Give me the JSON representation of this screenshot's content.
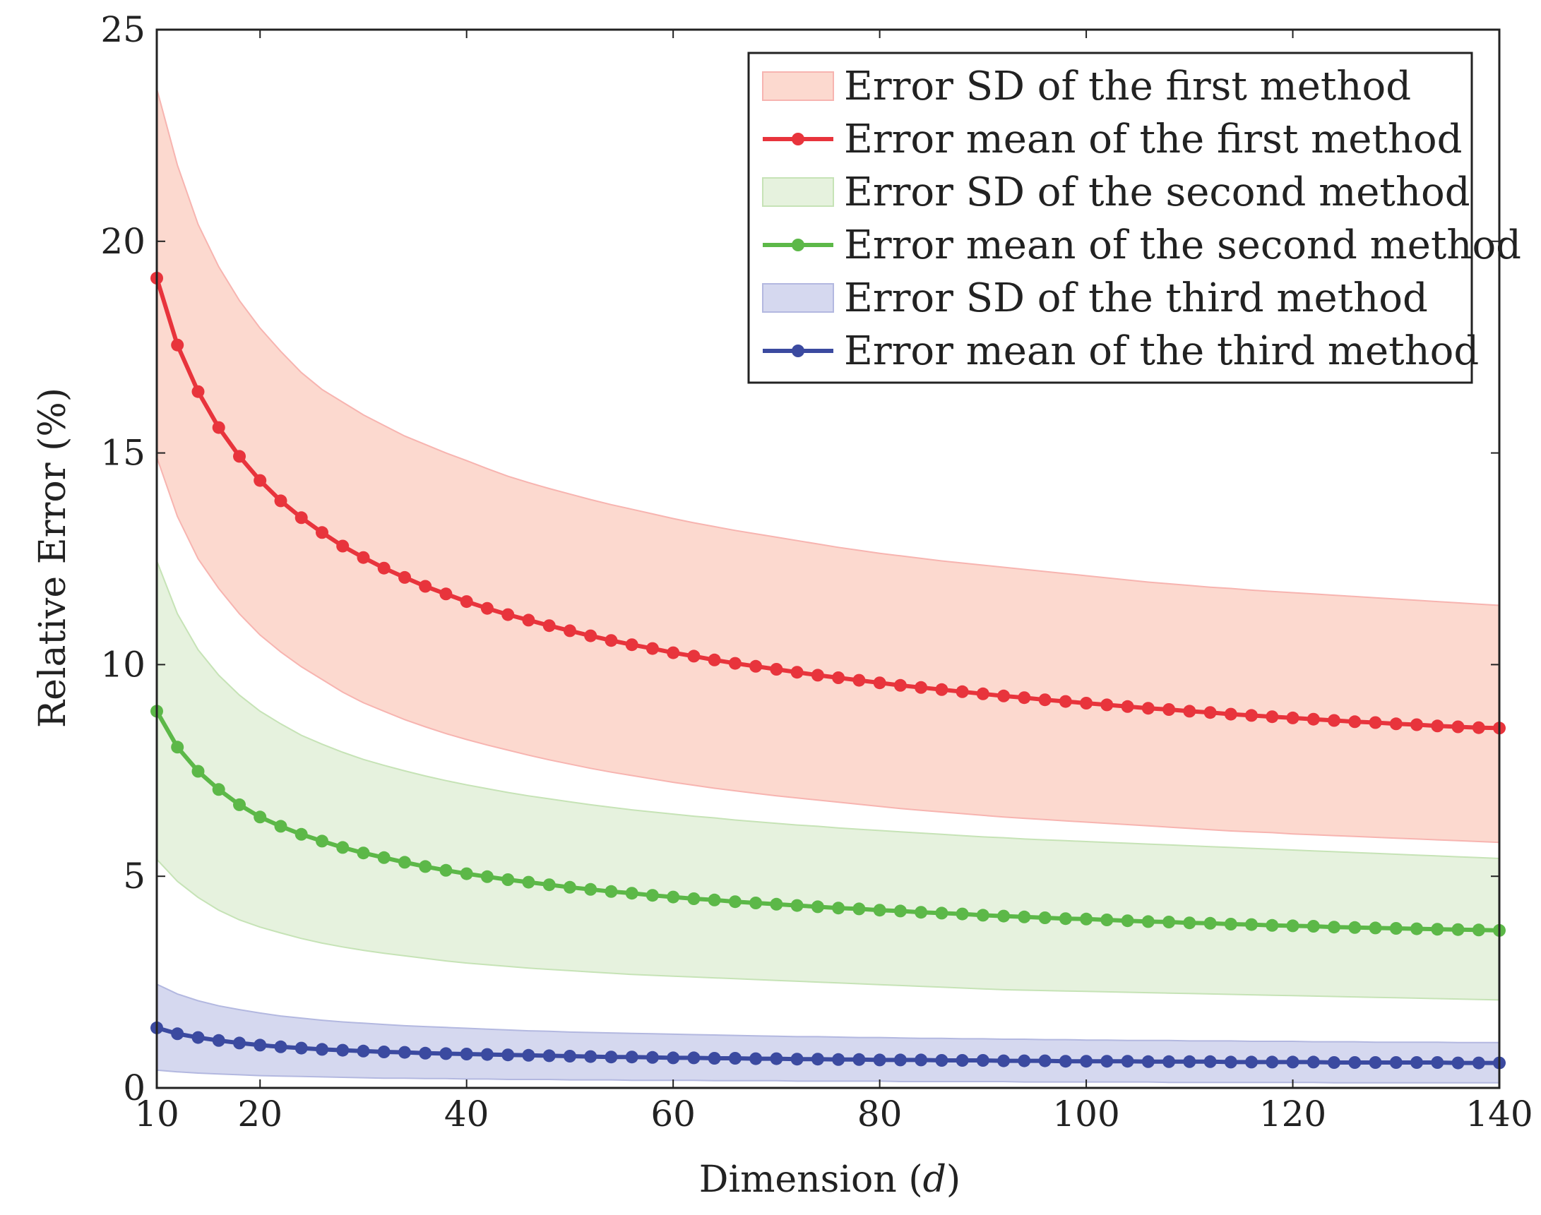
{
  "chart_data": {
    "type": "line",
    "title": "",
    "xlabel_text": "Dimension (",
    "xlabel_var": "d",
    "xlabel_close": ")",
    "ylabel": "Relative Error (%)",
    "xlim": [
      10,
      140
    ],
    "ylim": [
      0,
      25
    ],
    "xticks": [
      10,
      20,
      40,
      60,
      80,
      100,
      120,
      140
    ],
    "yticks": [
      0,
      5,
      10,
      15,
      20,
      25
    ],
    "xtick_labels": [
      "10",
      "20",
      "40",
      "60",
      "80",
      "100",
      "120",
      "140"
    ],
    "ytick_labels": [
      "0",
      "5",
      "10",
      "15",
      "20",
      "25"
    ],
    "legend_position": "top-right",
    "legend": [
      {
        "label": "Error SD of the first method",
        "kind": "band",
        "series": 0
      },
      {
        "label": "Error mean of the first method",
        "kind": "line",
        "series": 0
      },
      {
        "label": "Error SD of the second method",
        "kind": "band",
        "series": 1
      },
      {
        "label": "Error mean of the second method",
        "kind": "line",
        "series": 1
      },
      {
        "label": "Error SD of the third method",
        "kind": "band",
        "series": 2
      },
      {
        "label": "Error mean of the third method",
        "kind": "line",
        "series": 2
      }
    ],
    "x": [
      10,
      12,
      14,
      16,
      18,
      20,
      22,
      24,
      26,
      28,
      30,
      32,
      34,
      36,
      38,
      40,
      42,
      44,
      46,
      48,
      50,
      52,
      54,
      56,
      58,
      60,
      62,
      64,
      66,
      68,
      70,
      72,
      74,
      76,
      78,
      80,
      82,
      84,
      86,
      88,
      90,
      92,
      94,
      96,
      98,
      100,
      102,
      104,
      106,
      108,
      110,
      112,
      114,
      116,
      118,
      120,
      122,
      124,
      126,
      128,
      130,
      132,
      134,
      136,
      138,
      140
    ],
    "series": [
      {
        "name": "first method",
        "line_color": "#e8343c",
        "band_fill": "#fcd9cf",
        "band_stroke": "#f7b4b0",
        "mean": [
          19.13,
          17.55,
          16.45,
          15.6,
          14.92,
          14.35,
          13.87,
          13.47,
          13.12,
          12.8,
          12.53,
          12.28,
          12.06,
          11.85,
          11.67,
          11.49,
          11.33,
          11.18,
          11.05,
          10.92,
          10.8,
          10.68,
          10.57,
          10.47,
          10.38,
          10.28,
          10.2,
          10.11,
          10.03,
          9.96,
          9.89,
          9.82,
          9.75,
          9.69,
          9.63,
          9.57,
          9.51,
          9.46,
          9.41,
          9.36,
          9.31,
          9.26,
          9.22,
          9.17,
          9.13,
          9.09,
          9.05,
          9.01,
          8.97,
          8.94,
          8.9,
          8.87,
          8.83,
          8.8,
          8.77,
          8.74,
          8.71,
          8.68,
          8.65,
          8.63,
          8.6,
          8.58,
          8.55,
          8.53,
          8.51,
          8.5
        ],
        "upper": [
          23.6,
          21.8,
          20.4,
          19.4,
          18.6,
          17.95,
          17.4,
          16.9,
          16.5,
          16.2,
          15.9,
          15.65,
          15.4,
          15.2,
          15.0,
          14.82,
          14.63,
          14.45,
          14.3,
          14.16,
          14.03,
          13.9,
          13.78,
          13.67,
          13.56,
          13.45,
          13.35,
          13.26,
          13.17,
          13.09,
          13.01,
          12.93,
          12.85,
          12.77,
          12.7,
          12.63,
          12.57,
          12.51,
          12.45,
          12.4,
          12.35,
          12.3,
          12.25,
          12.2,
          12.15,
          12.1,
          12.05,
          12.0,
          11.95,
          11.91,
          11.87,
          11.83,
          11.8,
          11.76,
          11.73,
          11.7,
          11.67,
          11.64,
          11.61,
          11.58,
          11.55,
          11.52,
          11.49,
          11.46,
          11.43,
          11.4
        ],
        "lower": [
          14.9,
          13.5,
          12.5,
          11.8,
          11.2,
          10.7,
          10.3,
          9.95,
          9.65,
          9.35,
          9.1,
          8.9,
          8.7,
          8.53,
          8.37,
          8.23,
          8.1,
          7.98,
          7.86,
          7.75,
          7.65,
          7.55,
          7.46,
          7.38,
          7.3,
          7.22,
          7.15,
          7.08,
          7.02,
          6.96,
          6.9,
          6.85,
          6.8,
          6.75,
          6.7,
          6.65,
          6.6,
          6.56,
          6.52,
          6.48,
          6.44,
          6.4,
          6.37,
          6.34,
          6.31,
          6.28,
          6.25,
          6.22,
          6.19,
          6.16,
          6.13,
          6.1,
          6.07,
          6.05,
          6.03,
          6.0,
          5.98,
          5.96,
          5.94,
          5.92,
          5.9,
          5.88,
          5.86,
          5.84,
          5.82,
          5.8
        ]
      },
      {
        "name": "second method",
        "line_color": "#5cb848",
        "band_fill": "#e6f2de",
        "band_stroke": "#c6e3b6",
        "mean": [
          8.9,
          8.05,
          7.48,
          7.05,
          6.69,
          6.4,
          6.18,
          5.99,
          5.83,
          5.68,
          5.55,
          5.44,
          5.33,
          5.23,
          5.14,
          5.06,
          4.99,
          4.92,
          4.86,
          4.8,
          4.74,
          4.69,
          4.64,
          4.6,
          4.55,
          4.51,
          4.47,
          4.44,
          4.4,
          4.37,
          4.34,
          4.31,
          4.28,
          4.25,
          4.23,
          4.2,
          4.18,
          4.15,
          4.13,
          4.11,
          4.08,
          4.06,
          4.04,
          4.02,
          4.0,
          3.99,
          3.97,
          3.95,
          3.93,
          3.92,
          3.9,
          3.89,
          3.87,
          3.86,
          3.84,
          3.83,
          3.82,
          3.8,
          3.79,
          3.78,
          3.77,
          3.76,
          3.75,
          3.74,
          3.73,
          3.72
        ],
        "upper": [
          12.45,
          11.2,
          10.35,
          9.75,
          9.28,
          8.9,
          8.6,
          8.33,
          8.12,
          7.93,
          7.76,
          7.62,
          7.49,
          7.37,
          7.26,
          7.16,
          7.07,
          6.98,
          6.9,
          6.83,
          6.76,
          6.69,
          6.63,
          6.57,
          6.52,
          6.47,
          6.42,
          6.38,
          6.33,
          6.29,
          6.25,
          6.21,
          6.18,
          6.14,
          6.11,
          6.08,
          6.05,
          6.02,
          5.99,
          5.96,
          5.93,
          5.91,
          5.88,
          5.86,
          5.84,
          5.82,
          5.8,
          5.78,
          5.76,
          5.74,
          5.72,
          5.7,
          5.68,
          5.66,
          5.64,
          5.62,
          5.6,
          5.58,
          5.56,
          5.54,
          5.52,
          5.5,
          5.48,
          5.46,
          5.44,
          5.42
        ],
        "lower": [
          5.4,
          4.88,
          4.5,
          4.2,
          3.97,
          3.8,
          3.66,
          3.53,
          3.42,
          3.33,
          3.25,
          3.18,
          3.12,
          3.06,
          3.0,
          2.95,
          2.91,
          2.87,
          2.83,
          2.8,
          2.77,
          2.74,
          2.71,
          2.68,
          2.66,
          2.64,
          2.62,
          2.6,
          2.58,
          2.56,
          2.54,
          2.52,
          2.5,
          2.48,
          2.46,
          2.44,
          2.42,
          2.4,
          2.38,
          2.36,
          2.34,
          2.32,
          2.31,
          2.3,
          2.29,
          2.28,
          2.27,
          2.26,
          2.25,
          2.24,
          2.23,
          2.22,
          2.21,
          2.2,
          2.19,
          2.18,
          2.17,
          2.16,
          2.15,
          2.14,
          2.13,
          2.12,
          2.11,
          2.1,
          2.09,
          2.08
        ]
      },
      {
        "name": "third method",
        "line_color": "#3b4aa0",
        "band_fill": "#d5d8ef",
        "band_stroke": "#b3b8e0",
        "mean": [
          1.42,
          1.28,
          1.19,
          1.12,
          1.06,
          1.01,
          0.97,
          0.94,
          0.91,
          0.89,
          0.87,
          0.85,
          0.84,
          0.82,
          0.81,
          0.8,
          0.79,
          0.78,
          0.77,
          0.76,
          0.75,
          0.74,
          0.73,
          0.73,
          0.72,
          0.71,
          0.71,
          0.7,
          0.7,
          0.69,
          0.69,
          0.68,
          0.68,
          0.67,
          0.67,
          0.66,
          0.66,
          0.66,
          0.65,
          0.65,
          0.65,
          0.64,
          0.64,
          0.64,
          0.63,
          0.63,
          0.63,
          0.63,
          0.62,
          0.62,
          0.62,
          0.62,
          0.61,
          0.61,
          0.61,
          0.61,
          0.61,
          0.6,
          0.6,
          0.6,
          0.6,
          0.6,
          0.6,
          0.59,
          0.59,
          0.59
        ],
        "upper": [
          2.45,
          2.22,
          2.06,
          1.94,
          1.85,
          1.77,
          1.7,
          1.65,
          1.6,
          1.56,
          1.53,
          1.5,
          1.47,
          1.45,
          1.43,
          1.41,
          1.39,
          1.37,
          1.35,
          1.34,
          1.32,
          1.31,
          1.3,
          1.29,
          1.28,
          1.27,
          1.26,
          1.25,
          1.24,
          1.23,
          1.22,
          1.21,
          1.21,
          1.2,
          1.19,
          1.19,
          1.18,
          1.17,
          1.17,
          1.16,
          1.16,
          1.15,
          1.15,
          1.14,
          1.14,
          1.13,
          1.13,
          1.12,
          1.12,
          1.12,
          1.11,
          1.11,
          1.11,
          1.1,
          1.1,
          1.1,
          1.09,
          1.09,
          1.09,
          1.08,
          1.08,
          1.08,
          1.08,
          1.07,
          1.07,
          1.07
        ],
        "lower": [
          0.42,
          0.38,
          0.35,
          0.33,
          0.31,
          0.29,
          0.28,
          0.27,
          0.26,
          0.25,
          0.24,
          0.23,
          0.23,
          0.22,
          0.22,
          0.21,
          0.21,
          0.2,
          0.2,
          0.2,
          0.19,
          0.19,
          0.19,
          0.18,
          0.18,
          0.18,
          0.18,
          0.17,
          0.17,
          0.17,
          0.17,
          0.16,
          0.16,
          0.16,
          0.16,
          0.16,
          0.15,
          0.15,
          0.15,
          0.15,
          0.15,
          0.15,
          0.14,
          0.14,
          0.14,
          0.14,
          0.14,
          0.14,
          0.14,
          0.13,
          0.13,
          0.13,
          0.13,
          0.13,
          0.13,
          0.13,
          0.13,
          0.12,
          0.12,
          0.12,
          0.12,
          0.12,
          0.12,
          0.12,
          0.12,
          0.12
        ]
      }
    ]
  }
}
